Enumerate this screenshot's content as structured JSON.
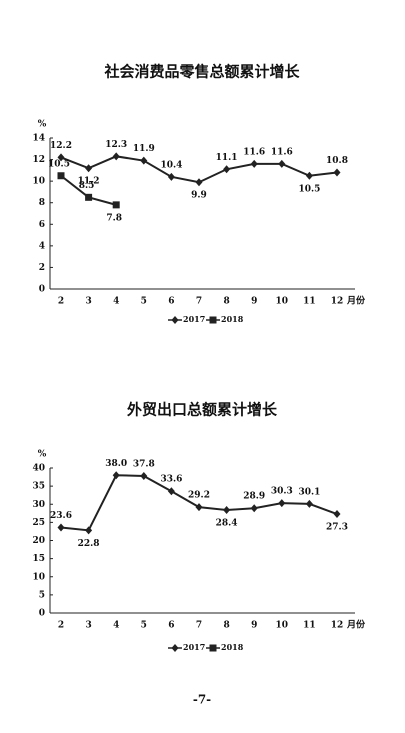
{
  "chart_data": [
    {
      "type": "line",
      "title": "社会消费品零售总额累计增长",
      "y_label": "%",
      "x_label": "月份",
      "categories": [
        "2",
        "3",
        "4",
        "5",
        "6",
        "7",
        "8",
        "9",
        "10",
        "11",
        "12"
      ],
      "ylim": [
        0,
        14
      ],
      "yticks": [
        0,
        2,
        4,
        6,
        8,
        10,
        12,
        14
      ],
      "grid": false,
      "series": [
        {
          "name": "2017",
          "color": "#222222",
          "marker": "diamond",
          "values": [
            12.2,
            11.2,
            12.3,
            11.9,
            10.4,
            9.9,
            11.1,
            11.6,
            11.6,
            10.5,
            10.8
          ]
        },
        {
          "name": "2018",
          "color": "#222222",
          "marker": "square",
          "values": [
            10.5,
            8.5,
            7.8,
            null,
            null,
            null,
            null,
            null,
            null,
            null,
            null
          ]
        }
      ]
    },
    {
      "type": "line",
      "title": "外贸出口总额累计增长",
      "y_label": "%",
      "x_label": "月份",
      "categories": [
        "2",
        "3",
        "4",
        "5",
        "6",
        "7",
        "8",
        "9",
        "10",
        "11",
        "12"
      ],
      "ylim": [
        0,
        40
      ],
      "yticks": [
        0,
        5,
        10,
        15,
        20,
        25,
        30,
        35,
        40
      ],
      "grid": false,
      "series": [
        {
          "name": "2017",
          "color": "#222222",
          "marker": "diamond",
          "values": [
            23.6,
            22.8,
            38.0,
            37.8,
            33.6,
            29.2,
            28.4,
            28.9,
            30.3,
            30.1,
            27.3
          ],
          "value_labels": [
            "23.6",
            "22.8",
            "38.0",
            "37.8",
            "33.6",
            "29.2",
            "28.4",
            "28.9",
            "30.3",
            "30.1",
            "27.3"
          ]
        },
        {
          "name": "2018",
          "color": "#222222",
          "marker": "square",
          "values": [
            null,
            null,
            null,
            null,
            null,
            null,
            null,
            null,
            null,
            null,
            null
          ]
        }
      ]
    }
  ],
  "page_number": "-7-"
}
